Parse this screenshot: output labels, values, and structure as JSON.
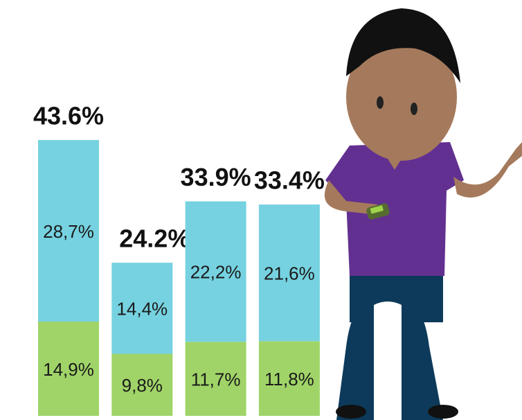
{
  "chart_data": {
    "type": "bar",
    "stacked": true,
    "categories": [
      null,
      null,
      null,
      null
    ],
    "series": [
      {
        "color": "#a0d468",
        "values": [
          14.9,
          9.8,
          11.7,
          11.8
        ],
        "value_labels": [
          "14,9%",
          "9,8%",
          "11,7%",
          "11,8%"
        ]
      },
      {
        "color": "#76d2e0",
        "values": [
          28.7,
          14.4,
          22.2,
          21.6
        ],
        "value_labels": [
          "28,7%",
          "14,4%",
          "22,2%",
          "21,6%"
        ]
      }
    ],
    "totals": {
      "values": [
        43.6,
        24.2,
        33.9,
        33.4
      ],
      "value_labels": [
        "43.6%",
        "24.2%",
        "33.9%",
        "33.4%"
      ]
    }
  }
}
